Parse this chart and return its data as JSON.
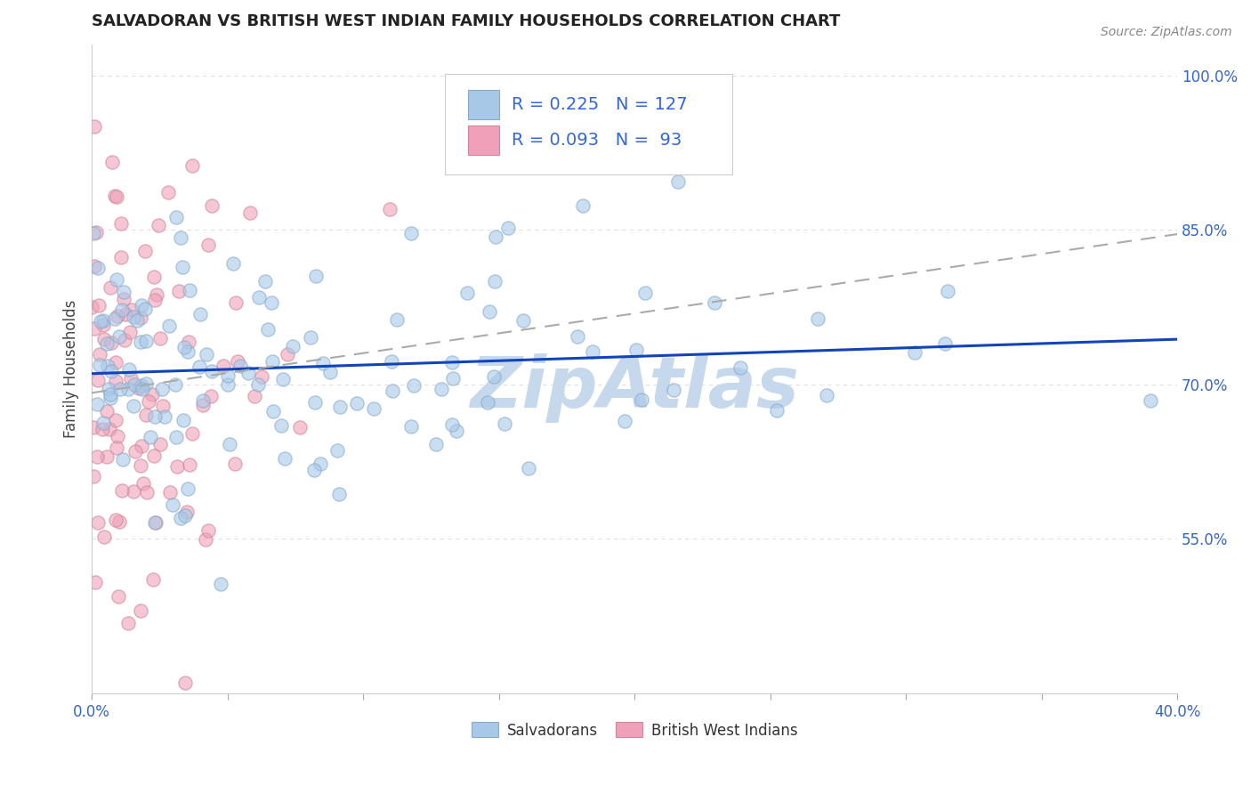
{
  "title": "SALVADORAN VS BRITISH WEST INDIAN FAMILY HOUSEHOLDS CORRELATION CHART",
  "source": "Source: ZipAtlas.com",
  "xlabel": "",
  "ylabel": "Family Households",
  "xlim": [
    0.0,
    0.4
  ],
  "ylim": [
    0.4,
    1.03
  ],
  "xticks_minor": [
    0.0,
    0.05,
    0.1,
    0.15,
    0.2,
    0.25,
    0.3,
    0.35,
    0.4
  ],
  "xticks_label": [
    0.0,
    0.4
  ],
  "xticklabels": [
    "0.0%",
    "40.0%"
  ],
  "yticks": [
    0.55,
    0.7,
    0.85,
    1.0
  ],
  "yticklabels": [
    "55.0%",
    "70.0%",
    "85.0%",
    "100.0%"
  ],
  "salvadoran_color": "#a8c8e8",
  "salvadoran_edge": "#88aacc",
  "bwi_color": "#f0a0b8",
  "bwi_edge": "#cc8899",
  "trend_blue": "#1144bb",
  "trend_gray": "#aaaaaa",
  "R_salv": 0.225,
  "N_salv": 127,
  "R_bwi": 0.093,
  "N_bwi": 93,
  "watermark": "ZipAtlas",
  "watermark_color": "#c5d8ec",
  "background_color": "#ffffff",
  "grid_color": "#e0e0e0",
  "grid_dash": [
    4,
    4
  ],
  "title_fontsize": 13,
  "legend_color": "#3366dd",
  "dot_size": 120,
  "dot_alpha": 0.6,
  "dot_linewidth": 1.0
}
